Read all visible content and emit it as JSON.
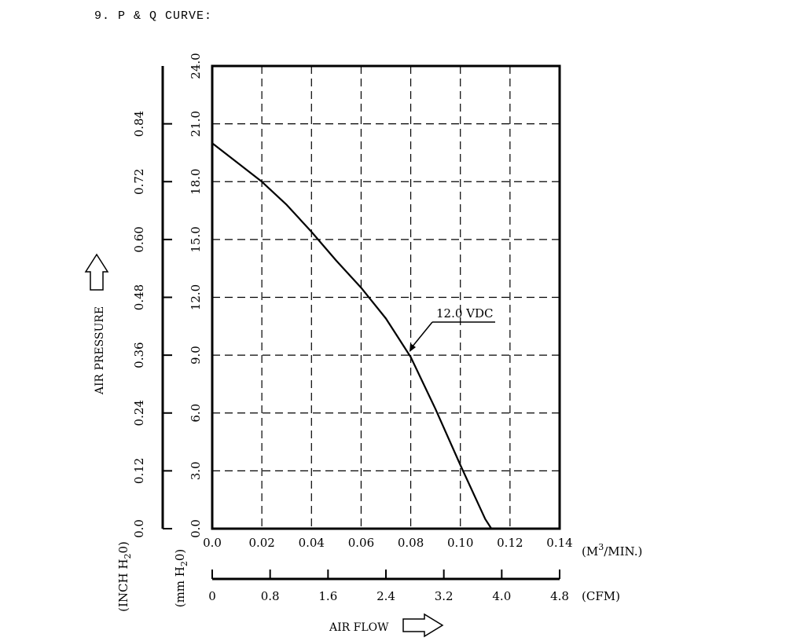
{
  "heading": "9. P & Q CURVE:",
  "chart_data": {
    "type": "line",
    "y_axes": {
      "inch": {
        "ticks": [
          "0.0",
          "0.12",
          "0.24",
          "0.36",
          "0.48",
          "0.60",
          "0.72",
          "0.84"
        ],
        "unit_main": "(INCH H",
        "unit_sub": "2",
        "unit_end": "0)"
      },
      "mm": {
        "ticks": [
          "0.0",
          "3.0",
          "6.0",
          "9.0",
          "12.0",
          "15.0",
          "18.0",
          "21.0",
          "24.0"
        ],
        "unit_main": "(mm H",
        "unit_sub": "2",
        "unit_end": "0)",
        "ylim": [
          0,
          24
        ]
      },
      "label": "AIR PRESSURE"
    },
    "x_axes": {
      "m3": {
        "ticks": [
          "0.0",
          "0.02",
          "0.04",
          "0.06",
          "0.08",
          "0.10",
          "0.12",
          "0.14"
        ],
        "unit_main": "(M",
        "unit_sup": "3",
        "unit_end": "/MIN.)",
        "xlim": [
          0,
          0.14
        ]
      },
      "cfm": {
        "ticks": [
          "0",
          "0.8",
          "1.6",
          "2.4",
          "3.2",
          "4.0",
          "4.8"
        ],
        "unit": "(CFM)"
      },
      "label": "AIR FLOW"
    },
    "grid": true,
    "series": [
      {
        "name": "12.0 VDC",
        "x": [
          0.0,
          0.01,
          0.02,
          0.03,
          0.04,
          0.05,
          0.06,
          0.07,
          0.08,
          0.09,
          0.1,
          0.11,
          0.1125
        ],
        "y": [
          20.0,
          19.0,
          18.0,
          16.8,
          15.4,
          13.9,
          12.5,
          10.9,
          8.9,
          6.2,
          3.3,
          0.5,
          0.0
        ]
      }
    ],
    "annotation": {
      "text": "12.0 VDC",
      "x": 0.08,
      "y": 9.0
    },
    "icons": [
      "arrow-up-icon",
      "arrow-right-icon"
    ]
  }
}
